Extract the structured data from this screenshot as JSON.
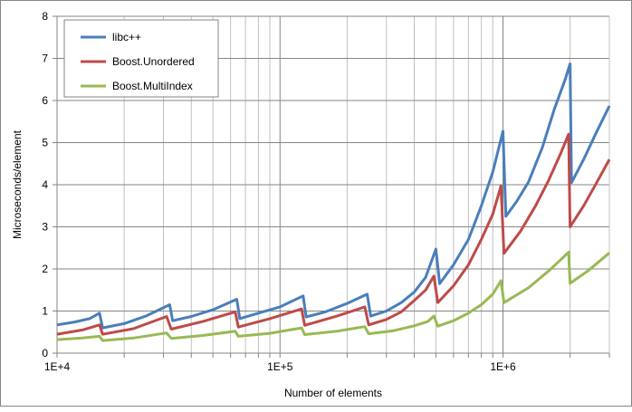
{
  "chart_data": {
    "type": "line",
    "title": "",
    "xlabel": "Number of elements",
    "ylabel": "Microseconds/element",
    "x_scale": "log",
    "xlim": [
      10000,
      3000000
    ],
    "ylim": [
      0,
      8
    ],
    "x_ticks": [
      {
        "value": 10000,
        "label": "1E+4"
      },
      {
        "value": 100000,
        "label": "1E+5"
      },
      {
        "value": 1000000,
        "label": "1E+6"
      }
    ],
    "y_ticks": [
      {
        "value": 0,
        "label": "0"
      },
      {
        "value": 1,
        "label": "1"
      },
      {
        "value": 2,
        "label": "2"
      },
      {
        "value": 3,
        "label": "3"
      },
      {
        "value": 4,
        "label": "4"
      },
      {
        "value": 5,
        "label": "5"
      },
      {
        "value": 6,
        "label": "6"
      },
      {
        "value": 7,
        "label": "7"
      },
      {
        "value": 8,
        "label": "8"
      }
    ],
    "grid": {
      "major_x": true,
      "minor_x": true,
      "y": true
    },
    "legend_position": "top-left",
    "series": [
      {
        "name": "libc++",
        "color": "#4a7ebb",
        "x": [
          10000,
          12000,
          14000,
          15500,
          16000,
          20000,
          25000,
          32000,
          33000,
          40000,
          50000,
          64000,
          66000,
          80000,
          100000,
          127000,
          131000,
          160000,
          200000,
          246000,
          255000,
          300000,
          350000,
          400000,
          450000,
          500000,
          520000,
          600000,
          700000,
          800000,
          900000,
          1000000,
          1030000,
          1150000,
          1300000,
          1500000,
          1700000,
          1900000,
          2000000,
          2030000,
          2300000,
          2600000,
          3000000
        ],
        "y": [
          0.67,
          0.74,
          0.82,
          0.95,
          0.6,
          0.7,
          0.88,
          1.15,
          0.77,
          0.87,
          1.03,
          1.28,
          0.82,
          0.95,
          1.1,
          1.36,
          0.86,
          0.98,
          1.18,
          1.4,
          0.88,
          1.0,
          1.2,
          1.45,
          1.8,
          2.47,
          1.65,
          2.1,
          2.7,
          3.5,
          4.3,
          5.27,
          3.25,
          3.6,
          4.06,
          4.88,
          5.8,
          6.5,
          6.87,
          4.05,
          4.6,
          5.2,
          5.87
        ]
      },
      {
        "name": "Boost.Unordered",
        "color": "#be4b48",
        "x": [
          10000,
          13000,
          15500,
          16000,
          22000,
          31000,
          32500,
          45000,
          63000,
          65000,
          90000,
          125000,
          129000,
          180000,
          240000,
          250000,
          300000,
          350000,
          400000,
          450000,
          490000,
          510000,
          600000,
          700000,
          800000,
          900000,
          980000,
          1010000,
          1200000,
          1400000,
          1600000,
          1800000,
          1970000,
          2000000,
          2300000,
          2600000,
          3000000
        ],
        "y": [
          0.45,
          0.55,
          0.67,
          0.45,
          0.58,
          0.87,
          0.57,
          0.75,
          0.98,
          0.62,
          0.82,
          1.05,
          0.66,
          0.88,
          1.1,
          0.67,
          0.8,
          0.98,
          1.25,
          1.5,
          1.83,
          1.2,
          1.6,
          2.1,
          2.7,
          3.3,
          3.97,
          2.37,
          2.9,
          3.5,
          4.1,
          4.7,
          5.2,
          3.0,
          3.5,
          4.0,
          4.6
        ]
      },
      {
        "name": "Boost.MultiIndex",
        "color": "#98b954",
        "x": [
          10000,
          13000,
          15500,
          16000,
          22000,
          31000,
          32500,
          45000,
          63000,
          65000,
          90000,
          125000,
          129000,
          180000,
          240000,
          250000,
          320000,
          400000,
          460000,
          490000,
          510000,
          600000,
          700000,
          800000,
          900000,
          980000,
          1010000,
          1300000,
          1600000,
          1800000,
          1970000,
          2000000,
          2400000,
          3000000
        ],
        "y": [
          0.32,
          0.36,
          0.4,
          0.3,
          0.36,
          0.48,
          0.35,
          0.42,
          0.52,
          0.4,
          0.47,
          0.6,
          0.44,
          0.52,
          0.63,
          0.46,
          0.53,
          0.65,
          0.75,
          0.88,
          0.64,
          0.77,
          0.95,
          1.15,
          1.4,
          1.72,
          1.2,
          1.55,
          1.95,
          2.2,
          2.4,
          1.66,
          1.95,
          2.38
        ]
      }
    ]
  }
}
